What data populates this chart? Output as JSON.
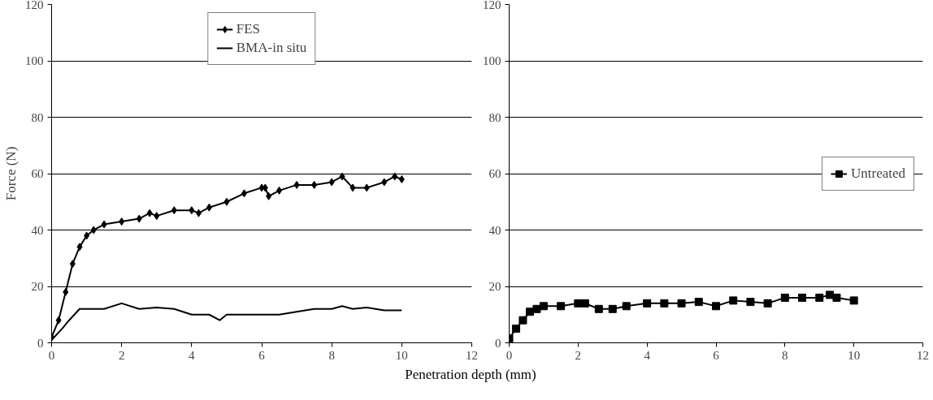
{
  "chart_data": [
    {
      "type": "line",
      "ylabel": "Force (N)",
      "xlabel": "Penetration depth (mm)",
      "xlim": [
        0,
        12
      ],
      "xticks": [
        0,
        2,
        4,
        6,
        8,
        10,
        12
      ],
      "ylim": [
        0,
        120
      ],
      "yticks": [
        0,
        20,
        40,
        60,
        80,
        100,
        120
      ],
      "grid": "y",
      "legend": "top",
      "series": [
        {
          "name": "FES",
          "color": "#000000",
          "marker": "diamond",
          "x": [
            0,
            0.2,
            0.4,
            0.6,
            0.8,
            1.0,
            1.2,
            1.5,
            2,
            2.5,
            2.8,
            3,
            3.5,
            4,
            4.2,
            4.5,
            5,
            5.5,
            6,
            6.1,
            6.2,
            6.5,
            7,
            7.5,
            8,
            8.3,
            8.6,
            9,
            9.5,
            9.8,
            10
          ],
          "values": [
            2,
            8,
            18,
            28,
            34,
            38,
            40,
            42,
            43,
            44,
            46,
            45,
            47,
            47,
            46,
            48,
            50,
            53,
            55,
            55,
            52,
            54,
            56,
            56,
            57,
            59,
            55,
            55,
            57,
            59,
            58
          ]
        },
        {
          "name": "BMA-in situ",
          "color": "#000000",
          "marker": "none",
          "x": [
            0,
            0.3,
            0.5,
            0.8,
            1,
            1.5,
            2,
            2.5,
            3,
            3.5,
            4,
            4.5,
            4.8,
            5,
            5.5,
            6,
            6.5,
            7,
            7.5,
            8,
            8.3,
            8.6,
            9,
            9.5,
            10
          ],
          "values": [
            1,
            5,
            8,
            12,
            12,
            12,
            14,
            12,
            12.5,
            12,
            10,
            10,
            8,
            10,
            10,
            10,
            10,
            11,
            12,
            12,
            13,
            12,
            12.5,
            11.5,
            11.5
          ]
        }
      ]
    },
    {
      "type": "line",
      "xlim": [
        0,
        12
      ],
      "xticks": [
        0,
        2,
        4,
        6,
        8,
        10,
        12
      ],
      "ylim": [
        0,
        120
      ],
      "yticks": [
        0,
        20,
        40,
        60,
        80,
        100,
        120
      ],
      "grid": "y",
      "legend": "right",
      "series": [
        {
          "name": "Untreated",
          "color": "#000000",
          "marker": "square",
          "x": [
            0,
            0.2,
            0.4,
            0.6,
            0.8,
            1,
            1.5,
            2,
            2.2,
            2.6,
            3,
            3.4,
            4,
            4.5,
            5,
            5.5,
            6,
            6.5,
            7,
            7.5,
            8,
            8.5,
            9,
            9.3,
            9.5,
            10
          ],
          "values": [
            1.5,
            5,
            8,
            11,
            12,
            13,
            13,
            14,
            14,
            12,
            12,
            13,
            14,
            14,
            14,
            14.5,
            13,
            15,
            14.5,
            14,
            16,
            16,
            16,
            17,
            16,
            15
          ]
        }
      ]
    }
  ]
}
